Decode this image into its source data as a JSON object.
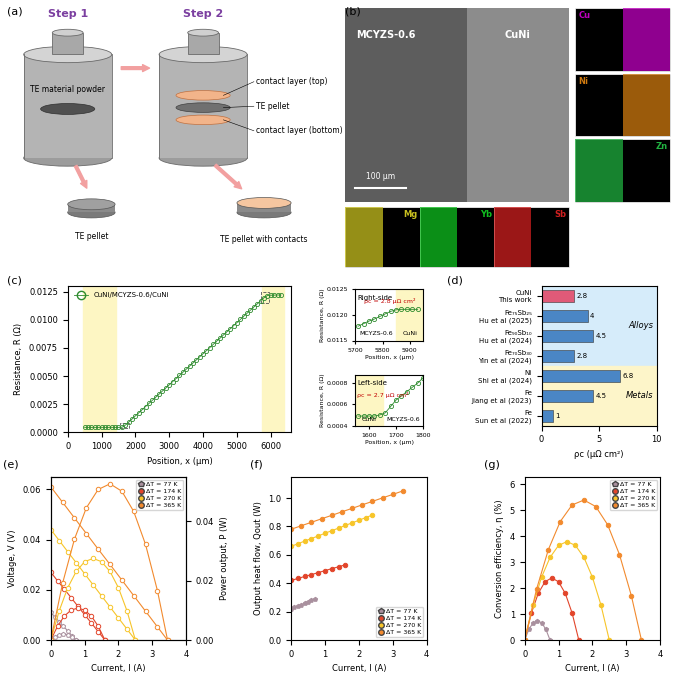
{
  "diagram": {
    "panel": "(a)",
    "steps": [
      "Step 1",
      "Step 2"
    ],
    "labels": {
      "powder": "TE material powder",
      "pellet": "TE pellet",
      "contact_top": "contact layer (top)",
      "pellet_mid": "TE pellet",
      "contact_bottom": "contact layer (bottom)",
      "product": "TE pellet with contacts"
    }
  },
  "image": {
    "panel": "(b)",
    "regions": [
      "MCYZS-0.6",
      "CuNi"
    ],
    "scale_bar": "100 μm",
    "maps": [
      {
        "element": "Cu",
        "color": "#c000c0"
      },
      {
        "element": "Ni",
        "color": "#d07a10"
      },
      {
        "element": "Zn",
        "color": "#20b040"
      },
      {
        "element": "Mg",
        "color": "#c8c020"
      },
      {
        "element": "Yb",
        "color": "#10c020"
      },
      {
        "element": "Sb",
        "color": "#d02020"
      }
    ]
  },
  "chart_data": [
    {
      "panel": "(c)",
      "type": "line",
      "xlabel": "Position, x (μm)",
      "ylabel": "Resistance, R (Ω)",
      "xlim": [
        0,
        6600
      ],
      "xticks": [
        0,
        1000,
        2000,
        3000,
        4000,
        5000,
        6000
      ],
      "ylim": [
        0,
        0.013
      ],
      "yticks": [
        {
          "value": 0,
          "label": "0.0000"
        },
        {
          "value": 0.0025,
          "label": "0.0025"
        },
        {
          "value": 0.005,
          "label": "0.0050"
        },
        {
          "value": 0.0075,
          "label": "0.0075"
        },
        {
          "value": 0.01,
          "label": "0.0100"
        },
        {
          "value": 0.0125,
          "label": "0.0125"
        }
      ],
      "legend": "upper left",
      "shaded": [
        [
          440,
          1430
        ],
        [
          5750,
          6400
        ]
      ],
      "series": [
        {
          "name": "CuNi/MCYZS-0.6/CuNi",
          "color": "#2e8b2e",
          "marker": "circle",
          "x": [
            500,
            600,
            700,
            800,
            900,
            1000,
            1100,
            1200,
            1300,
            1400,
            1500,
            1600,
            1700,
            1800,
            1900,
            2000,
            2100,
            2200,
            2300,
            2400,
            2500,
            2600,
            2700,
            2800,
            2900,
            3000,
            3100,
            3200,
            3300,
            3400,
            3500,
            3600,
            3700,
            3800,
            3900,
            4000,
            4100,
            4200,
            4300,
            4400,
            4500,
            4600,
            4700,
            4800,
            4900,
            5000,
            5100,
            5200,
            5300,
            5400,
            5500,
            5600,
            5700,
            5800,
            5900,
            6000,
            6100,
            6200,
            6300
          ],
          "values": [
            0.00045,
            0.00045,
            0.00045,
            0.00045,
            0.00045,
            0.00045,
            0.00045,
            0.00045,
            0.00045,
            0.00045,
            0.00045,
            0.00045,
            0.00064,
            0.00091,
            0.00119,
            0.00147,
            0.00174,
            0.00202,
            0.0023,
            0.00257,
            0.00285,
            0.00312,
            0.0034,
            0.00368,
            0.00395,
            0.00423,
            0.00451,
            0.00478,
            0.00506,
            0.00533,
            0.00561,
            0.00589,
            0.00616,
            0.00644,
            0.00672,
            0.00699,
            0.00727,
            0.00754,
            0.00782,
            0.0081,
            0.00837,
            0.00865,
            0.00893,
            0.0092,
            0.00948,
            0.00975,
            0.01003,
            0.01031,
            0.01058,
            0.01086,
            0.01114,
            0.01141,
            0.01169,
            0.01196,
            0.01215,
            0.01218,
            0.01219,
            0.0122,
            0.0122
          ]
        }
      ],
      "insets": [
        {
          "title": "Right-side",
          "annotation": "ρc = 2.8 μΩ cm²",
          "left_text": "MCYZS-0.6",
          "right_text": "CuNi",
          "xlabel": "Position, x (μm)",
          "ylabel": "Resistance, R (Ω)",
          "xlim": [
            5700,
            5950
          ],
          "xticks": [
            5700,
            5800,
            5900
          ],
          "ylim": [
            0.0115,
            0.0125
          ],
          "yticks": [
            {
              "value": 0.0115,
              "label": "0.0115"
            },
            {
              "value": 0.012,
              "label": "0.0120"
            },
            {
              "value": 0.0125,
              "label": "0.0125"
            }
          ],
          "shaded": [
            5850,
            5950
          ],
          "x": [
            5710,
            5730,
            5750,
            5770,
            5790,
            5810,
            5830,
            5850,
            5870,
            5890,
            5910,
            5930
          ],
          "values": [
            0.01178,
            0.01183,
            0.01188,
            0.01192,
            0.01197,
            0.01202,
            0.01207,
            0.0121,
            0.01211,
            0.01211,
            0.01211,
            0.01211
          ]
        },
        {
          "title": "Left-side",
          "annotation": "ρc = 2.7 μΩ cm²",
          "left_text": "CuNi",
          "right_text": "MCYZS-0.6",
          "xlabel": "Position, x (μm)",
          "ylabel": "Resistance, R (Ω)",
          "xlim": [
            1550,
            1800
          ],
          "xticks": [
            1600,
            1700,
            1800
          ],
          "ylim": [
            0.0004,
            0.00088
          ],
          "yticks": [
            {
              "value": 0.0004,
              "label": "0.0004"
            },
            {
              "value": 0.0006,
              "label": "0.0006"
            },
            {
              "value": 0.0008,
              "label": "0.0008"
            }
          ],
          "shaded": [
            1550,
            1650
          ],
          "x": [
            1560,
            1580,
            1600,
            1620,
            1640,
            1660,
            1680,
            1700,
            1720,
            1740,
            1760,
            1780,
            1800
          ],
          "values": [
            0.00049,
            0.00049,
            0.00049,
            0.00049,
            0.0005,
            0.00052,
            0.00058,
            0.00064,
            0.00068,
            0.00072,
            0.00076,
            0.0008,
            0.00085
          ]
        }
      ]
    },
    {
      "panel": "(d)",
      "type": "bar",
      "orientation": "horizontal",
      "categories": [
        "CuNi\nThis work",
        "Fe₇₅Sb₂₅\nHu et al (2025)",
        "Fe₉₀Sb₁₀\nHu et al (2024)",
        "Fe₇₀Sb₃₀\nYin et al (2024)",
        "Ni\nShi et al (2024)",
        "Fe\nJiang et al (2023)",
        "Fe\nSun et al (2022)"
      ],
      "values": [
        2.8,
        4,
        4.5,
        2.8,
        6.8,
        4.5,
        1
      ],
      "colors": [
        "#e05a78",
        "#4a86c5",
        "#4a86c5",
        "#4a86c5",
        "#4a86c5",
        "#4a86c5",
        "#4a86c5"
      ],
      "data_labels": true,
      "xlabel": "ρc (μΩ cm²)",
      "xlim": [
        0,
        10
      ],
      "xticks": [
        0,
        5,
        10
      ],
      "groups": [
        {
          "label": "Alloys",
          "count": 4,
          "color": "#d6ecfa"
        },
        {
          "label": "Metals",
          "count": 3,
          "color": "#fdf5c9"
        }
      ]
    },
    {
      "panel": "(e)",
      "type": "line",
      "xlabel": "Current, I (A)",
      "ylabel": "Voltage, V (V)",
      "y2label": "Power output, P (W)",
      "xlim": [
        0,
        4
      ],
      "xticks": [
        0,
        1,
        2,
        3,
        4
      ],
      "ylim": [
        0,
        0.065
      ],
      "yticks": [
        {
          "value": 0,
          "label": "0.00"
        },
        {
          "value": 0.02,
          "label": "0.02"
        },
        {
          "value": 0.04,
          "label": "0.04"
        },
        {
          "value": 0.06,
          "label": "0.06"
        }
      ],
      "y2lim": [
        0,
        0.055
      ],
      "y2ticks": [
        {
          "value": 0,
          "label": "0.00"
        },
        {
          "value": 0.02,
          "label": "0.02"
        },
        {
          "value": 0.04,
          "label": "0.04"
        }
      ],
      "legend": "upper right",
      "series": [
        {
          "name": "ΔT = 77 K",
          "color": "#a9909e",
          "marker": "pentagon",
          "x": [
            0,
            0.125,
            0.25,
            0.375,
            0.5,
            0.625,
            0.75
          ],
          "values": [
            0.011,
            0.0092,
            0.0073,
            0.0055,
            0.0037,
            0.0018,
            0
          ]
        },
        {
          "name": "ΔT = 174 K",
          "color": "#e2452b",
          "marker": "circle",
          "x": [
            0,
            0.2,
            0.4,
            0.6,
            0.8,
            1.0,
            1.2,
            1.4,
            1.6
          ],
          "values": [
            0.027,
            0.0236,
            0.0203,
            0.0169,
            0.0135,
            0.0101,
            0.0068,
            0.0034,
            0
          ]
        },
        {
          "name": "ΔT = 270 K",
          "color": "#f7c52a",
          "marker": "circle",
          "x": [
            0,
            0.25,
            0.5,
            0.75,
            1.0,
            1.25,
            1.5,
            1.75,
            2.0,
            2.25,
            2.5
          ],
          "values": [
            0.044,
            0.0396,
            0.0352,
            0.0308,
            0.0264,
            0.022,
            0.0176,
            0.0132,
            0.0088,
            0.0044,
            0
          ]
        },
        {
          "name": "ΔT = 365 K",
          "color": "#f28a2e",
          "marker": "circle",
          "x": [
            0,
            0.35,
            0.7,
            1.05,
            1.4,
            1.75,
            2.1,
            2.45,
            2.8,
            3.15,
            3.45
          ],
          "values": [
            0.061,
            0.0548,
            0.0486,
            0.0424,
            0.0362,
            0.0301,
            0.0239,
            0.0177,
            0.0115,
            0.0053,
            0
          ]
        },
        {
          "name": "ΔT = 77 K",
          "color": "#a9909e",
          "marker": "pentagon",
          "axis": "y2",
          "x": [
            0,
            0.125,
            0.25,
            0.375,
            0.5,
            0.625,
            0.75
          ],
          "values": [
            0,
            0.0011,
            0.0018,
            0.0021,
            0.0018,
            0.0011,
            0
          ]
        },
        {
          "name": "ΔT = 174 K",
          "color": "#e2452b",
          "marker": "circle",
          "axis": "y2",
          "x": [
            0,
            0.2,
            0.4,
            0.6,
            0.8,
            1.0,
            1.2,
            1.4,
            1.6
          ],
          "values": [
            0,
            0.0047,
            0.0081,
            0.0101,
            0.0108,
            0.0101,
            0.0081,
            0.0047,
            0
          ]
        },
        {
          "name": "ΔT = 270 K",
          "color": "#f7c52a",
          "marker": "circle",
          "axis": "y2",
          "x": [
            0,
            0.25,
            0.5,
            0.75,
            1.0,
            1.25,
            1.5,
            1.75,
            2.0,
            2.25,
            2.5
          ],
          "values": [
            0,
            0.0099,
            0.0176,
            0.0231,
            0.0264,
            0.0275,
            0.0264,
            0.0231,
            0.0176,
            0.0099,
            0
          ]
        },
        {
          "name": "ΔT = 365 K",
          "color": "#f28a2e",
          "marker": "circle",
          "axis": "y2",
          "x": [
            0,
            0.35,
            0.7,
            1.05,
            1.4,
            1.75,
            2.1,
            2.45,
            2.8,
            3.15,
            3.45
          ],
          "values": [
            0,
            0.0192,
            0.034,
            0.0445,
            0.0507,
            0.0526,
            0.0501,
            0.0433,
            0.0322,
            0.0167,
            0
          ]
        }
      ]
    },
    {
      "panel": "(f)",
      "type": "line",
      "xlabel": "Current, I (A)",
      "ylabel": "Output heat flow, Qout (W)",
      "xlim": [
        0,
        4
      ],
      "xticks": [
        0,
        1,
        2,
        3,
        4
      ],
      "ylim": [
        0,
        1.15
      ],
      "yticks": [
        0.0,
        0.2,
        0.4,
        0.6,
        0.8,
        1.0
      ],
      "legend": "lower right",
      "series": [
        {
          "name": "ΔT = 77 K",
          "color": "#a9909e",
          "marker": "pentagon",
          "x": [
            0,
            0.1,
            0.2,
            0.3,
            0.4,
            0.5,
            0.6,
            0.7
          ],
          "values": [
            0.22,
            0.23,
            0.24,
            0.25,
            0.26,
            0.27,
            0.28,
            0.29
          ]
        },
        {
          "name": "ΔT = 174 K",
          "color": "#e2452b",
          "marker": "circle",
          "x": [
            0,
            0.2,
            0.4,
            0.6,
            0.8,
            1.0,
            1.2,
            1.4,
            1.6
          ],
          "values": [
            0.42,
            0.434,
            0.448,
            0.461,
            0.475,
            0.489,
            0.503,
            0.516,
            0.53
          ]
        },
        {
          "name": "ΔT = 270 K",
          "color": "#f7c52a",
          "marker": "circle",
          "x": [
            0,
            0.2,
            0.4,
            0.6,
            0.8,
            1.0,
            1.2,
            1.4,
            1.6,
            1.8,
            2.0,
            2.2,
            2.4
          ],
          "values": [
            0.66,
            0.678,
            0.697,
            0.715,
            0.733,
            0.752,
            0.77,
            0.788,
            0.807,
            0.825,
            0.843,
            0.862,
            0.88
          ]
        },
        {
          "name": "ΔT = 365 K",
          "color": "#f28a2e",
          "marker": "circle",
          "x": [
            0,
            0.3,
            0.6,
            0.9,
            1.2,
            1.5,
            1.8,
            2.1,
            2.4,
            2.7,
            3.0,
            3.3
          ],
          "values": [
            0.78,
            0.805,
            0.829,
            0.854,
            0.878,
            0.903,
            0.927,
            0.952,
            0.976,
            1.001,
            1.025,
            1.05
          ]
        }
      ]
    },
    {
      "panel": "(g)",
      "type": "line",
      "xlabel": "Current, I (A)",
      "ylabel": "Conversion efficiency, η (%)",
      "xlim": [
        0,
        4
      ],
      "xticks": [
        0,
        1,
        2,
        3,
        4
      ],
      "ylim": [
        0,
        6.3
      ],
      "yticks": [
        0,
        1,
        2,
        3,
        4,
        5,
        6
      ],
      "legend": "upper right",
      "series": [
        {
          "name": "ΔT = 77 K",
          "color": "#a9909e",
          "marker": "pentagon",
          "x": [
            0,
            0.125,
            0.25,
            0.375,
            0.5,
            0.625,
            0.75
          ],
          "values": [
            0,
            0.42,
            0.67,
            0.75,
            0.67,
            0.42,
            0
          ]
        },
        {
          "name": "ΔT = 174 K",
          "color": "#e2452b",
          "marker": "circle",
          "x": [
            0,
            0.2,
            0.4,
            0.6,
            0.8,
            1.0,
            1.2,
            1.4,
            1.6
          ],
          "values": [
            0,
            1.05,
            1.8,
            2.25,
            2.4,
            2.25,
            1.8,
            1.05,
            0
          ]
        },
        {
          "name": "ΔT = 270 K",
          "color": "#f7c52a",
          "marker": "circle",
          "x": [
            0,
            0.25,
            0.5,
            0.75,
            1.0,
            1.25,
            1.5,
            1.75,
            2.0,
            2.25,
            2.5
          ],
          "values": [
            0,
            1.37,
            2.43,
            3.19,
            3.65,
            3.8,
            3.65,
            3.19,
            2.43,
            1.37,
            0
          ]
        },
        {
          "name": "ΔT = 365 K",
          "color": "#f28a2e",
          "marker": "circle",
          "x": [
            0,
            0.35,
            0.7,
            1.05,
            1.4,
            1.75,
            2.1,
            2.45,
            2.8,
            3.15,
            3.45
          ],
          "values": [
            0,
            1.96,
            3.49,
            4.57,
            5.21,
            5.4,
            5.15,
            4.45,
            3.3,
            1.72,
            0
          ]
        }
      ]
    }
  ]
}
